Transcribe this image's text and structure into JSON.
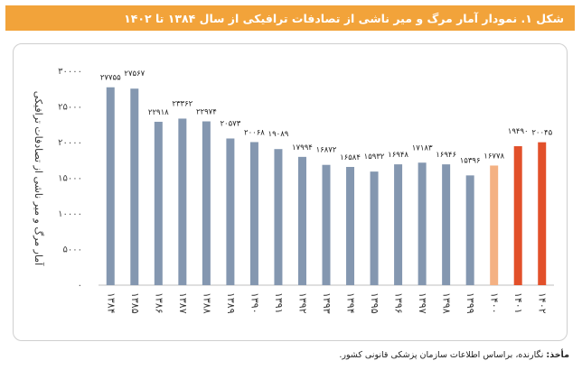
{
  "header": {
    "title": "شکل ۱. نمودار آمار مرگ و میر ناشی از تصادفات ترافیکی از سال ۱۳۸۴ تا ۱۴۰۲"
  },
  "footer": {
    "source_label": "مأخذ:",
    "source_text": "نگارنده، براساس اطلاعات سازمان پزشکی قانونی کشور."
  },
  "colors": {
    "title_bg": "#f2a33a",
    "bar_default": "#8497b0",
    "bar_light_highlight": "#f4b183",
    "bar_highlight": "#e2502a"
  },
  "chart_data": {
    "type": "bar",
    "title": "",
    "xlabel": "",
    "ylabel": "آمار مرگ و میر ناشی از تصادفات ترافیکی",
    "ylim": [
      0,
      30000
    ],
    "yticks": [
      0,
      5000,
      10000,
      15000,
      20000,
      25000,
      30000
    ],
    "ytick_labels": [
      "۰",
      "۵۰۰۰",
      "۱۰۰۰۰",
      "۱۵۰۰۰",
      "۲۰۰۰۰",
      "۲۵۰۰۰",
      "۳۰۰۰۰"
    ],
    "categories": [
      "۱۳۸۴",
      "۱۳۸۵",
      "۱۳۸۶",
      "۱۳۸۷",
      "۱۳۸۸",
      "۱۳۸۹",
      "۱۳۹۰",
      "۱۳۹۱",
      "۱۳۹۲",
      "۱۳۹۳",
      "۱۳۹۴",
      "۱۳۹۵",
      "۱۳۹۶",
      "۱۳۹۷",
      "۱۳۹۸",
      "۱۳۹۹",
      "۱۴۰۰",
      "۱۴۰۱",
      "۱۴۰۲"
    ],
    "values": [
      27755,
      27567,
      22918,
      23362,
      22974,
      20573,
      20068,
      19089,
      17994,
      16872,
      16584,
      15932,
      16948,
      17183,
      16946,
      15396,
      16778,
      19490,
      20045
    ],
    "data_labels": [
      "۲۷۷۵۵",
      "۲۷۵۶۷",
      "۲۲۹۱۸",
      "۲۳۳۶۲",
      "۲۲۹۷۴",
      "۲۰۵۷۳",
      "۲۰۰۶۸",
      "۱۹۰۸۹",
      "۱۷۹۹۴",
      "۱۶۸۷۲",
      "۱۶۵۸۴",
      "۱۵۹۳۲",
      "۱۶۹۴۸",
      "۱۷۱۸۳",
      "۱۶۹۴۶",
      "۱۵۳۹۶",
      "۱۶۷۷۸",
      "۱۹۴۹۰",
      "۲۰۰۴۵"
    ],
    "bar_colors": [
      "#8497b0",
      "#8497b0",
      "#8497b0",
      "#8497b0",
      "#8497b0",
      "#8497b0",
      "#8497b0",
      "#8497b0",
      "#8497b0",
      "#8497b0",
      "#8497b0",
      "#8497b0",
      "#8497b0",
      "#8497b0",
      "#8497b0",
      "#8497b0",
      "#f4b183",
      "#e2502a",
      "#e2502a"
    ],
    "grid": false,
    "legend": "none"
  }
}
